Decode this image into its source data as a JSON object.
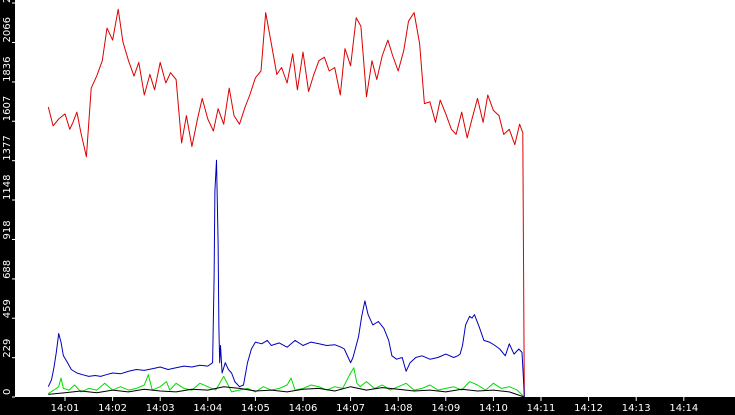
{
  "chart_data": {
    "type": "line",
    "title": "",
    "xlabel": "",
    "ylabel": "",
    "x_ticks": [
      "14:01",
      "14:02",
      "14:03",
      "14:04",
      "14:05",
      "14:06",
      "14:07",
      "14:08",
      "14:09",
      "14:10",
      "14:11",
      "14:12",
      "14:13",
      "14:14"
    ],
    "y_ticks": [
      0,
      229,
      459,
      688,
      918,
      1148,
      1377,
      1607,
      1836,
      2066,
      2296
    ],
    "xlim": [
      "14:00:39",
      "14:14:39"
    ],
    "ylim": [
      0,
      2296
    ],
    "grid": false,
    "legend": "none",
    "series": [
      {
        "color": "#dd0000",
        "x": [
          "14:00:39",
          "14:00:45",
          "14:00:52",
          "14:01:00",
          "14:01:06",
          "14:01:10",
          "14:01:15",
          "14:01:20",
          "14:01:27",
          "14:01:33",
          "14:01:40",
          "14:01:47",
          "14:01:53",
          "14:02:00",
          "14:02:07",
          "14:02:13",
          "14:02:20",
          "14:02:27",
          "14:02:33",
          "14:02:40",
          "14:02:47",
          "14:02:53",
          "14:03:00",
          "14:03:07",
          "14:03:13",
          "14:03:20",
          "14:03:27",
          "14:03:33",
          "14:03:40",
          "14:03:47",
          "14:03:53",
          "14:04:00",
          "14:04:07",
          "14:04:13",
          "14:04:20",
          "14:04:27",
          "14:04:33",
          "14:04:40",
          "14:04:47",
          "14:04:53",
          "14:05:00",
          "14:05:07",
          "14:05:13",
          "14:05:20",
          "14:05:27",
          "14:05:33",
          "14:05:40",
          "14:05:47",
          "14:05:53",
          "14:06:00",
          "14:06:07",
          "14:06:13",
          "14:06:20",
          "14:06:27",
          "14:06:33",
          "14:06:40",
          "14:06:47",
          "14:06:53",
          "14:07:00",
          "14:07:07",
          "14:07:13",
          "14:07:20",
          "14:07:27",
          "14:07:33",
          "14:07:40",
          "14:07:47",
          "14:07:53",
          "14:08:00",
          "14:08:07",
          "14:08:13",
          "14:08:20",
          "14:08:27",
          "14:08:33",
          "14:08:40",
          "14:08:47",
          "14:08:53",
          "14:09:00",
          "14:09:07",
          "14:09:13",
          "14:09:20",
          "14:09:27",
          "14:09:33",
          "14:09:40",
          "14:09:47",
          "14:09:53",
          "14:10:00",
          "14:10:07",
          "14:10:13",
          "14:10:20",
          "14:10:27",
          "14:10:33",
          "14:10:37",
          "14:10:39"
        ],
        "y": [
          1690,
          1580,
          1620,
          1650,
          1560,
          1600,
          1660,
          1540,
          1400,
          1800,
          1870,
          1960,
          2150,
          2080,
          2260,
          2070,
          1960,
          1870,
          1950,
          1760,
          1880,
          1790,
          1950,
          1830,
          1890,
          1850,
          1480,
          1640,
          1460,
          1620,
          1740,
          1620,
          1550,
          1680,
          1590,
          1800,
          1640,
          1590,
          1690,
          1760,
          1860,
          1900,
          2240,
          2060,
          1880,
          1920,
          1830,
          2000,
          1790,
          2010,
          1780,
          1870,
          1960,
          1980,
          1900,
          1920,
          1760,
          2030,
          1930,
          2210,
          2160,
          1750,
          1960,
          1850,
          1990,
          2080,
          1990,
          1900,
          2020,
          2190,
          2240,
          2060,
          1710,
          1720,
          1600,
          1730,
          1650,
          1560,
          1530,
          1660,
          1510,
          1620,
          1740,
          1600,
          1760,
          1670,
          1640,
          1530,
          1560,
          1470,
          1590,
          1540,
          0
        ]
      },
      {
        "color": "#0000bb",
        "x": [
          "14:00:39",
          "14:00:43",
          "14:00:46",
          "14:00:49",
          "14:00:52",
          "14:00:55",
          "14:00:58",
          "14:01:02",
          "14:01:08",
          "14:01:15",
          "14:01:22",
          "14:01:30",
          "14:01:38",
          "14:01:45",
          "14:01:52",
          "14:02:00",
          "14:02:10",
          "14:02:20",
          "14:02:30",
          "14:02:40",
          "14:02:50",
          "14:03:00",
          "14:03:10",
          "14:03:20",
          "14:03:30",
          "14:03:40",
          "14:03:50",
          "14:04:00",
          "14:04:06",
          "14:04:08",
          "14:04:09",
          "14:04:11",
          "14:04:13",
          "14:04:14",
          "14:04:15",
          "14:04:16",
          "14:04:18",
          "14:04:22",
          "14:04:26",
          "14:04:30",
          "14:04:34",
          "14:04:40",
          "14:04:45",
          "14:04:50",
          "14:04:55",
          "14:05:00",
          "14:05:08",
          "14:05:15",
          "14:05:20",
          "14:05:30",
          "14:05:40",
          "14:05:50",
          "14:06:00",
          "14:06:10",
          "14:06:20",
          "14:06:30",
          "14:06:40",
          "14:06:48",
          "14:06:52",
          "14:06:57",
          "14:07:00",
          "14:07:03",
          "14:07:07",
          "14:07:10",
          "14:07:14",
          "14:07:18",
          "14:07:22",
          "14:07:28",
          "14:07:35",
          "14:07:42",
          "14:07:48",
          "14:07:52",
          "14:07:58",
          "14:08:05",
          "14:08:10",
          "14:08:15",
          "14:08:22",
          "14:08:30",
          "14:08:40",
          "14:08:50",
          "14:09:00",
          "14:09:10",
          "14:09:15",
          "14:09:18",
          "14:09:21",
          "14:09:25",
          "14:09:30",
          "14:09:33",
          "14:09:36",
          "14:09:42",
          "14:09:48",
          "14:09:55",
          "14:10:02",
          "14:10:08",
          "14:10:15",
          "14:10:20",
          "14:10:26",
          "14:10:32",
          "14:10:36",
          "14:10:38",
          "14:10:39"
        ],
        "y": [
          60,
          100,
          170,
          260,
          370,
          320,
          240,
          210,
          160,
          140,
          130,
          120,
          125,
          120,
          130,
          140,
          135,
          150,
          160,
          155,
          165,
          175,
          160,
          170,
          180,
          175,
          185,
          180,
          200,
          700,
          1200,
          1380,
          900,
          400,
          200,
          300,
          140,
          200,
          160,
          140,
          90,
          60,
          70,
          200,
          280,
          320,
          310,
          330,
          300,
          315,
          290,
          330,
          300,
          320,
          310,
          300,
          305,
          290,
          280,
          230,
          200,
          230,
          300,
          350,
          470,
          560,
          480,
          420,
          440,
          400,
          330,
          240,
          220,
          230,
          150,
          200,
          230,
          240,
          220,
          230,
          250,
          230,
          240,
          250,
          300,
          420,
          470,
          460,
          480,
          410,
          330,
          320,
          300,
          280,
          240,
          310,
          250,
          280,
          260,
          100,
          0
        ]
      },
      {
        "color": "#00dd00",
        "x": [
          "14:00:39",
          "14:00:46",
          "14:00:52",
          "14:00:55",
          "14:00:58",
          "14:01:05",
          "14:01:12",
          "14:01:20",
          "14:01:30",
          "14:01:40",
          "14:01:50",
          "14:02:00",
          "14:02:10",
          "14:02:20",
          "14:02:30",
          "14:02:40",
          "14:02:45",
          "14:02:50",
          "14:03:00",
          "14:03:08",
          "14:03:12",
          "14:03:20",
          "14:03:30",
          "14:03:40",
          "14:03:50",
          "14:04:00",
          "14:04:10",
          "14:04:20",
          "14:04:30",
          "14:04:40",
          "14:04:50",
          "14:05:00",
          "14:05:10",
          "14:05:20",
          "14:05:30",
          "14:05:40",
          "14:05:45",
          "14:05:50",
          "14:06:00",
          "14:06:10",
          "14:06:20",
          "14:06:30",
          "14:06:40",
          "14:06:50",
          "14:07:00",
          "14:07:04",
          "14:07:08",
          "14:07:12",
          "14:07:20",
          "14:07:30",
          "14:07:40",
          "14:07:50",
          "14:08:00",
          "14:08:10",
          "14:08:20",
          "14:08:30",
          "14:08:40",
          "14:08:50",
          "14:09:00",
          "14:09:10",
          "14:09:20",
          "14:09:30",
          "14:09:40",
          "14:09:50",
          "14:10:00",
          "14:10:10",
          "14:10:20",
          "14:10:30",
          "14:10:39"
        ],
        "y": [
          20,
          40,
          60,
          110,
          50,
          40,
          70,
          30,
          50,
          40,
          80,
          40,
          60,
          40,
          50,
          70,
          130,
          40,
          60,
          90,
          40,
          80,
          50,
          40,
          80,
          60,
          40,
          120,
          30,
          40,
          50,
          30,
          60,
          40,
          50,
          70,
          110,
          40,
          50,
          70,
          60,
          40,
          60,
          50,
          140,
          170,
          80,
          60,
          90,
          50,
          70,
          40,
          60,
          80,
          40,
          50,
          70,
          40,
          50,
          60,
          40,
          90,
          70,
          40,
          80,
          50,
          60,
          40,
          0
        ]
      },
      {
        "color": "#000000",
        "x": [
          "14:00:39",
          "14:01:00",
          "14:01:20",
          "14:01:40",
          "14:02:00",
          "14:02:20",
          "14:02:40",
          "14:03:00",
          "14:03:20",
          "14:03:40",
          "14:04:00",
          "14:04:20",
          "14:04:40",
          "14:05:00",
          "14:05:20",
          "14:05:40",
          "14:06:00",
          "14:06:20",
          "14:06:40",
          "14:07:00",
          "14:07:20",
          "14:07:40",
          "14:08:00",
          "14:08:20",
          "14:08:40",
          "14:09:00",
          "14:09:20",
          "14:09:40",
          "14:10:00",
          "14:10:20",
          "14:10:39"
        ],
        "y": [
          15,
          25,
          35,
          25,
          40,
          30,
          45,
          35,
          30,
          45,
          40,
          60,
          50,
          35,
          40,
          30,
          45,
          50,
          35,
          60,
          40,
          55,
          45,
          35,
          40,
          30,
          45,
          35,
          40,
          30,
          0
        ]
      }
    ]
  }
}
